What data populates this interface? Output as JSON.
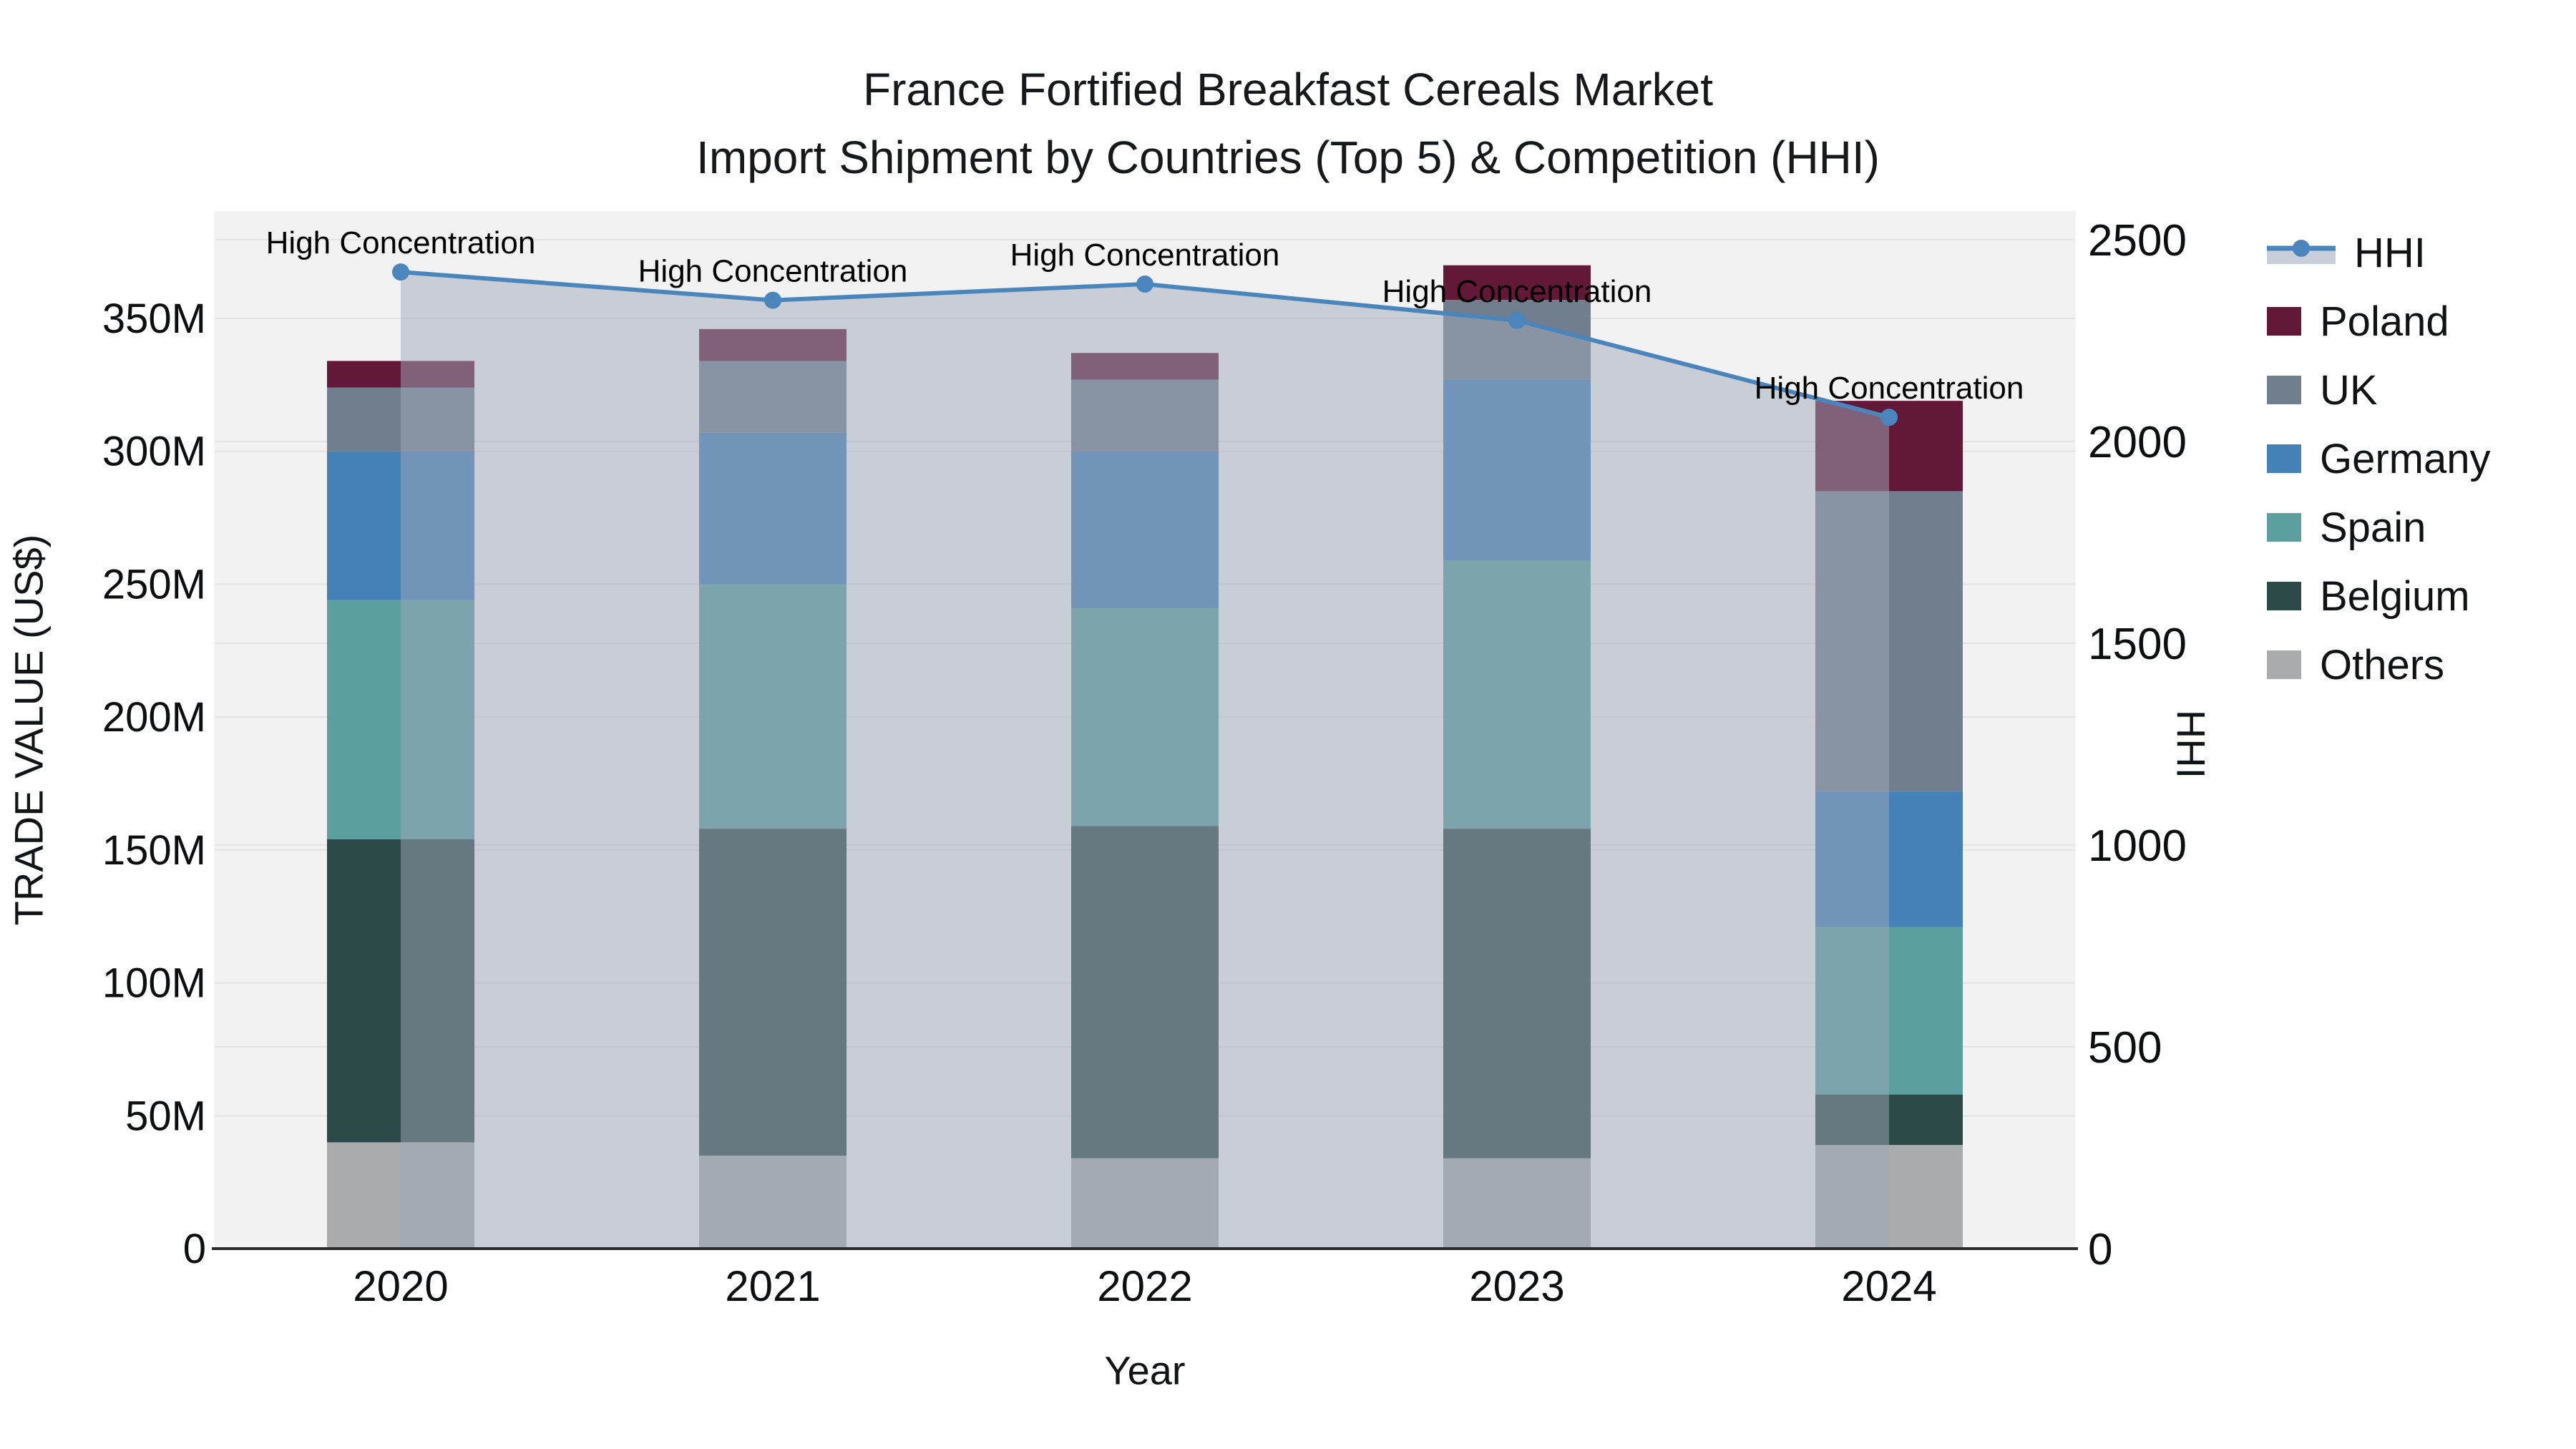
{
  "title": {
    "line1": "France Fortified Breakfast Cereals Market",
    "line2": "Import Shipment by Countries (Top 5) & Competition (HHI)"
  },
  "axes": {
    "x_title": "Year",
    "y_left_title": "TRADE VALUE (US$)",
    "y_right_title": "HHI",
    "x_ticks": [
      "2020",
      "2021",
      "2022",
      "2023",
      "2024"
    ],
    "y_left_ticks": [
      "0",
      "50M",
      "100M",
      "150M",
      "200M",
      "250M",
      "300M",
      "350M"
    ],
    "y_right_ticks": [
      "0",
      "500",
      "1000",
      "1500",
      "2000",
      "2500"
    ]
  },
  "legend": {
    "items": [
      {
        "label": "HHI",
        "swatch": "line",
        "color": "#4a86bc",
        "band": "#c9cfda"
      },
      {
        "label": "Poland",
        "swatch": "square",
        "color": "#631838"
      },
      {
        "label": "UK",
        "swatch": "square",
        "color": "#707e8e"
      },
      {
        "label": "Germany",
        "swatch": "square",
        "color": "#4381b7"
      },
      {
        "label": "Spain",
        "swatch": "square",
        "color": "#5ba09f"
      },
      {
        "label": "Belgium",
        "swatch": "square",
        "color": "#2c4b48"
      },
      {
        "label": "Others",
        "swatch": "square",
        "color": "#a9acae"
      }
    ]
  },
  "chart_data": {
    "type": "bar",
    "subtype": "stacked-bar-with-line-overlay",
    "title": "France Fortified Breakfast Cereals Market — Import Shipment by Countries (Top 5) & Competition (HHI)",
    "xlabel": "Year",
    "ylabel_left": "TRADE VALUE (US$)",
    "ylabel_right": "HHI",
    "categories": [
      "2020",
      "2021",
      "2022",
      "2023",
      "2024"
    ],
    "bar_value_unit": "million US$",
    "series": [
      {
        "name": "Others",
        "color": "#a9acae",
        "values": [
          40,
          35,
          34,
          34,
          39
        ]
      },
      {
        "name": "Belgium",
        "color": "#2c4b48",
        "values": [
          114,
          123,
          125,
          124,
          19
        ]
      },
      {
        "name": "Spain",
        "color": "#5ba09f",
        "values": [
          90,
          92,
          82,
          101,
          63
        ]
      },
      {
        "name": "Germany",
        "color": "#4381b7",
        "values": [
          56,
          57,
          59,
          68,
          51
        ]
      },
      {
        "name": "UK",
        "color": "#707e8e",
        "values": [
          24,
          27,
          27,
          30,
          113
        ]
      },
      {
        "name": "Poland",
        "color": "#631838",
        "values": [
          10,
          12,
          10,
          13,
          34
        ]
      }
    ],
    "bar_totals": [
      334,
      346,
      337,
      370,
      319
    ],
    "line_series": {
      "name": "HHI",
      "axis": "right",
      "values": [
        2420,
        2350,
        2390,
        2300,
        2060
      ],
      "color": "#4a86bc",
      "area_fill": "rgba(160,168,186,0.5)",
      "markers": true
    },
    "annotations": [
      {
        "text": "High Concentration",
        "category": "2020"
      },
      {
        "text": "High Concentration",
        "category": "2021"
      },
      {
        "text": "High Concentration",
        "category": "2022"
      },
      {
        "text": "High Concentration",
        "category": "2023"
      },
      {
        "text": "High Concentration",
        "category": "2024"
      }
    ],
    "y_left_axis": {
      "min": 0,
      "max": 390,
      "tick_step_million": 50
    },
    "y_right_axis": {
      "min": 0,
      "max": 2500,
      "tick_step": 500
    },
    "grid": true,
    "legend_position": "right",
    "plot_background": "#f2f2f2",
    "gridline_color": "#e3e3e3",
    "axis_line_color": "#2b2b2b"
  }
}
